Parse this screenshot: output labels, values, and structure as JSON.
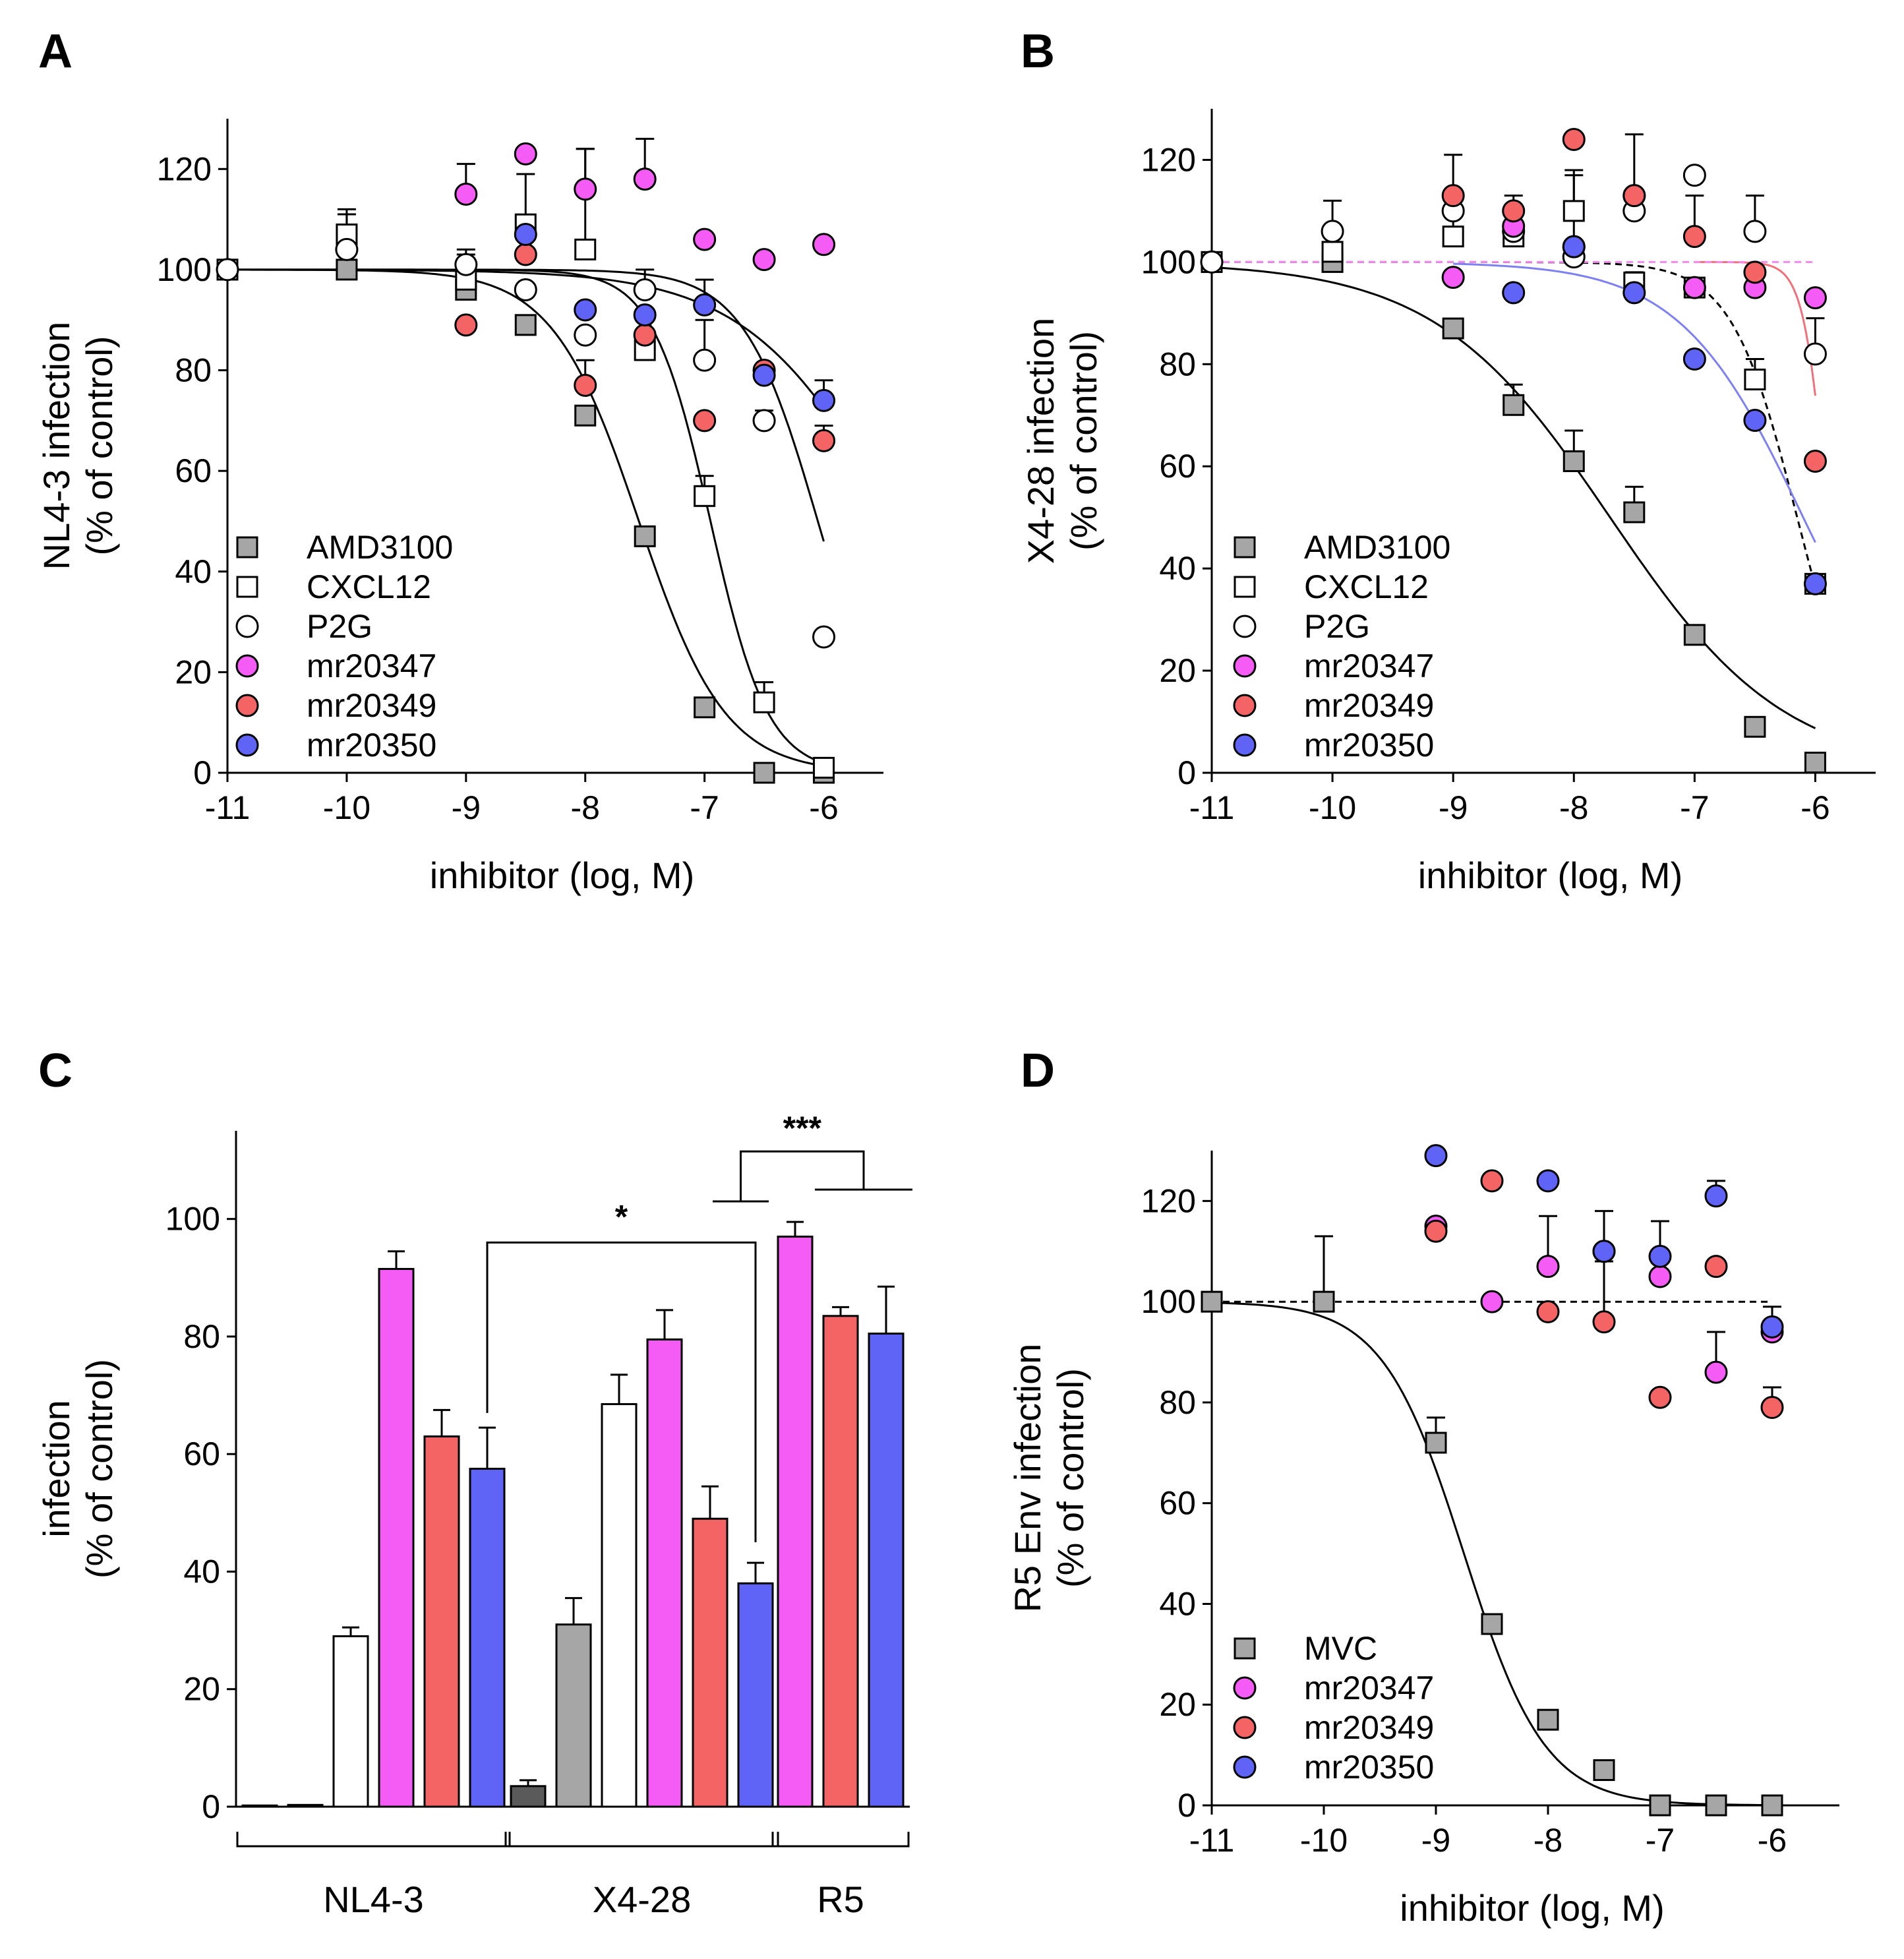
{
  "colors": {
    "AMD3100": "#a6a6a6",
    "MVC": "#a6a6a6",
    "CXCL12": "#ffffff",
    "P2G": "#ffffff",
    "mr20347": "#f55cf5",
    "mr20349": "#f46464",
    "mr20350": "#5f63f6",
    "AMD3100_dark": "#5a5a5a",
    "curve_blue": "#7d80f2",
    "curve_red": "#f2707a",
    "curve_pink": "#f489f0"
  },
  "chart_data": [
    {
      "id": "A",
      "type": "scatter",
      "panel_label": "A",
      "xlabel": "inhibitor (log, M)",
      "ylabel": [
        "NL4-3 infection",
        "(% of control)"
      ],
      "xlim": [
        -11,
        -5.5
      ],
      "ylim": [
        0,
        130
      ],
      "xticks": [
        -11,
        -10,
        -9,
        -8,
        -7,
        -6
      ],
      "xtick_labels": [
        "-11",
        "-10",
        "-9",
        "-8",
        "-7",
        "-6"
      ],
      "yticks": [
        0,
        20,
        40,
        60,
        80,
        100,
        120
      ],
      "ytick_labels": [
        "0",
        "20",
        "40",
        "60",
        "80",
        "100",
        "120"
      ],
      "legend": [
        "AMD3100",
        "CXCL12",
        "P2G",
        "mr20347",
        "mr20349",
        "mr20350"
      ],
      "series": [
        {
          "name": "AMD3100",
          "marker": "square",
          "x": [
            -11,
            -10,
            -9,
            -8.5,
            -8,
            -7.5,
            -7,
            -6.5,
            -6
          ],
          "y": [
            100,
            100,
            96,
            89,
            71,
            47,
            13,
            0,
            0
          ],
          "err": [
            0,
            0,
            4,
            0,
            0,
            0,
            0,
            0,
            0
          ]
        },
        {
          "name": "CXCL12",
          "marker": "square",
          "x": [
            -11,
            -10,
            -9,
            -8.5,
            -8,
            -7.5,
            -7,
            -6.5,
            -6
          ],
          "y": [
            100,
            107,
            98,
            109,
            104,
            84,
            55,
            14,
            1
          ],
          "err": [
            0,
            5,
            5,
            10,
            20,
            4,
            4,
            4,
            0
          ]
        },
        {
          "name": "P2G",
          "marker": "circle",
          "x": [
            -11,
            -10,
            -9,
            -8.5,
            -8,
            -7.5,
            -7,
            -6.5,
            -6
          ],
          "y": [
            100,
            104,
            101,
            96,
            87,
            96,
            82,
            70,
            27
          ],
          "err": [
            0,
            7,
            3,
            0,
            0,
            4,
            8,
            2,
            0
          ]
        },
        {
          "name": "mr20347",
          "marker": "circle",
          "x": [
            -9,
            -8.5,
            -8,
            -7.5,
            -7,
            -6.5,
            -6
          ],
          "y": [
            115,
            123,
            116,
            118,
            106,
            102,
            105
          ],
          "err": [
            6,
            0,
            8,
            8,
            0,
            0,
            0
          ]
        },
        {
          "name": "mr20349",
          "marker": "circle",
          "x": [
            -9,
            -8.5,
            -8,
            -7.5,
            -7,
            -6.5,
            -6
          ],
          "y": [
            89,
            103,
            77,
            87,
            70,
            80,
            66
          ],
          "err": [
            0,
            0,
            5,
            0,
            0,
            0,
            3
          ]
        },
        {
          "name": "mr20350",
          "marker": "circle",
          "x": [
            -8.5,
            -8,
            -7.5,
            -7,
            -6.5,
            -6
          ],
          "y": [
            107,
            92,
            91,
            93,
            79,
            74
          ],
          "err": [
            0,
            0,
            0,
            5,
            0,
            4
          ]
        }
      ],
      "curves": [
        {
          "name": "AMD3100",
          "top": 100,
          "bottom": 0,
          "logEC50": -7.55,
          "hill": 1.2,
          "style": "solid",
          "color": "#000000",
          "x0": -11,
          "x1": -6
        },
        {
          "name": "CXCL12",
          "top": 100,
          "bottom": 0,
          "logEC50": -6.95,
          "hill": 1.8,
          "style": "solid",
          "color": "#000000",
          "x0": -11,
          "x1": -6
        },
        {
          "name": "P2G",
          "top": 100,
          "bottom": 0,
          "logEC50": -6.05,
          "hill": 1.4,
          "style": "solid",
          "color": "#000000",
          "x0": -11,
          "x1": -6
        },
        {
          "name": "mr20350",
          "top": 100,
          "bottom": 0,
          "logEC50": -5.4,
          "hill": 0.7,
          "style": "solid",
          "color": "#000000",
          "x0": -11,
          "x1": -6
        }
      ]
    },
    {
      "id": "B",
      "type": "scatter",
      "panel_label": "B",
      "xlabel": "inhibitor (log, M)",
      "ylabel": [
        "X4-28 infection",
        "(% of control)"
      ],
      "xlim": [
        -11,
        -5.5
      ],
      "ylim": [
        0,
        130
      ],
      "xticks": [
        -11,
        -10,
        -9,
        -8,
        -7,
        -6
      ],
      "xtick_labels": [
        "-11",
        "-10",
        "-9",
        "-8",
        "-7",
        "-6"
      ],
      "yticks": [
        0,
        20,
        40,
        60,
        80,
        100,
        120
      ],
      "ytick_labels": [
        "0",
        "20",
        "40",
        "60",
        "80",
        "100",
        "120"
      ],
      "legend": [
        "AMD3100",
        "CXCL12",
        "P2G",
        "mr20347",
        "mr20349",
        "mr20350"
      ],
      "series": [
        {
          "name": "AMD3100",
          "marker": "square",
          "x": [
            -11,
            -10,
            -9,
            -8.5,
            -8,
            -7.5,
            -7,
            -6.5,
            -6
          ],
          "y": [
            100,
            100,
            87,
            72,
            61,
            51,
            27,
            9,
            2
          ],
          "err": [
            0,
            0,
            0,
            4,
            6,
            5,
            0,
            0,
            0
          ]
        },
        {
          "name": "CXCL12",
          "marker": "square",
          "x": [
            -11,
            -10,
            -9,
            -8.5,
            -8,
            -7.5,
            -7,
            -6.5,
            -6
          ],
          "y": [
            100,
            102,
            105,
            105,
            110,
            96,
            95,
            77,
            37
          ],
          "err": [
            0,
            4,
            6,
            8,
            8,
            2,
            0,
            4,
            0
          ]
        },
        {
          "name": "P2G",
          "marker": "circle",
          "x": [
            -11,
            -10,
            -9,
            -8.5,
            -8,
            -7.5,
            -7,
            -6.5,
            -6
          ],
          "y": [
            100,
            106,
            110,
            106,
            101,
            110,
            117,
            106,
            82
          ],
          "err": [
            0,
            6,
            0,
            0,
            0,
            0,
            0,
            7,
            7
          ]
        },
        {
          "name": "mr20347",
          "marker": "circle",
          "x": [
            -9,
            -8.5,
            -8,
            -7.5,
            -7,
            -6.5,
            -6
          ],
          "y": [
            97,
            107,
            103,
            113,
            95,
            95,
            93
          ],
          "err": [
            0,
            0,
            0,
            12,
            0,
            0,
            0
          ]
        },
        {
          "name": "mr20349",
          "marker": "circle",
          "x": [
            -9,
            -8.5,
            -8,
            -7.5,
            -7,
            -6.5,
            -6
          ],
          "y": [
            113,
            110,
            124,
            113,
            105,
            98,
            61
          ],
          "err": [
            8,
            0,
            0,
            0,
            8,
            0,
            0
          ]
        },
        {
          "name": "mr20350",
          "marker": "circle",
          "x": [
            -8.5,
            -8,
            -7.5,
            -7,
            -6.5,
            -6
          ],
          "y": [
            94,
            103,
            94,
            81,
            69,
            37
          ],
          "err": [
            0,
            14,
            0,
            0,
            0,
            0
          ]
        }
      ],
      "curves": [
        {
          "name": "AMD3100",
          "top": 100,
          "bottom": 0,
          "logEC50": -7.7,
          "hill": 0.6,
          "style": "solid",
          "color": "#000000",
          "x0": -11,
          "x1": -6
        },
        {
          "name": "CXCL12",
          "top": 100,
          "bottom": 0,
          "logEC50": -6.15,
          "hill": 1.6,
          "style": "dashed",
          "color": "#000000",
          "x0": -11,
          "x1": -6
        },
        {
          "name": "mr20350",
          "top": 100,
          "bottom": 0,
          "logEC50": -6.1,
          "hill": 0.85,
          "style": "solid",
          "color": "#7d80f2",
          "x0": -9,
          "x1": -6
        },
        {
          "name": "mr20349",
          "top": 100,
          "bottom": 0,
          "logEC50": -5.9,
          "hill": 4.5,
          "style": "solid",
          "color": "#f2707a",
          "x0": -7,
          "x1": -6
        },
        {
          "name": "mr20347",
          "top": 100,
          "bottom": 0,
          "logEC50": -2,
          "hill": 1,
          "style": "dashed",
          "color": "#f489f0",
          "x0": -11,
          "x1": -6
        }
      ]
    },
    {
      "id": "C",
      "type": "bar",
      "panel_label": "C",
      "ylabel": [
        "infection",
        "(% of control)"
      ],
      "ylim": [
        0,
        115
      ],
      "yticks": [
        0,
        20,
        40,
        60,
        80,
        100
      ],
      "ytick_labels": [
        "0",
        "20",
        "40",
        "60",
        "80",
        "100"
      ],
      "groups": [
        {
          "label": "NL4-3",
          "bars": [
            {
              "name": "AMD3100",
              "value": 0.2,
              "err": 0,
              "color_key": "AMD3100_dark"
            },
            {
              "name": "AMD3100",
              "value": 0.3,
              "err": 0,
              "color_key": "AMD3100"
            },
            {
              "name": "P2G",
              "value": 29,
              "err": 1.5,
              "color_key": "P2G"
            },
            {
              "name": "mr20347",
              "value": 91.5,
              "err": 3,
              "color_key": "mr20347"
            },
            {
              "name": "mr20349",
              "value": 63,
              "err": 4.5,
              "color_key": "mr20349"
            },
            {
              "name": "mr20350",
              "value": 57.5,
              "err": 7,
              "color_key": "mr20350"
            }
          ]
        },
        {
          "label": "X4-28",
          "bars": [
            {
              "name": "AMD3100",
              "value": 3.5,
              "err": 1,
              "color_key": "AMD3100_dark"
            },
            {
              "name": "AMD3100",
              "value": 31,
              "err": 4.5,
              "color_key": "AMD3100"
            },
            {
              "name": "P2G",
              "value": 68.5,
              "err": 5,
              "color_key": "P2G"
            },
            {
              "name": "mr20347",
              "value": 79.5,
              "err": 5,
              "color_key": "mr20347"
            },
            {
              "name": "mr20349",
              "value": 49,
              "err": 5.5,
              "color_key": "mr20349"
            },
            {
              "name": "mr20350",
              "value": 38,
              "err": 3.5,
              "color_key": "mr20350"
            }
          ]
        },
        {
          "label": "R5",
          "bars": [
            {
              "name": "mr20347",
              "value": 97,
              "err": 2.5,
              "color_key": "mr20347"
            },
            {
              "name": "mr20349",
              "value": 83.5,
              "err": 1.5,
              "color_key": "mr20349"
            },
            {
              "name": "mr20350",
              "value": 80.5,
              "err": 8,
              "color_key": "mr20350"
            }
          ]
        }
      ],
      "annotations": [
        {
          "text": "*",
          "between": "NL4-3 mr20350 vs X4-28 mr20350"
        },
        {
          "text": "***",
          "between": "X4-28 mr20350 vs R5"
        }
      ]
    },
    {
      "id": "D",
      "type": "scatter",
      "panel_label": "D",
      "xlabel": "inhibitor (log, M)",
      "ylabel": [
        "R5 Env infection",
        "(% of control)"
      ],
      "xlim": [
        -11,
        -5.4
      ],
      "ylim": [
        0,
        130
      ],
      "xticks": [
        -11,
        -10,
        -9,
        -8,
        -7,
        -6
      ],
      "xtick_labels": [
        "-11",
        "-10",
        "-9",
        "-8",
        "-7",
        "-6"
      ],
      "yticks": [
        0,
        20,
        40,
        60,
        80,
        100,
        120
      ],
      "ytick_labels": [
        "0",
        "20",
        "40",
        "60",
        "80",
        "100",
        "120"
      ],
      "legend": [
        "MVC",
        "mr20347",
        "mr20349",
        "mr20350"
      ],
      "series": [
        {
          "name": "MVC",
          "marker": "square",
          "x": [
            -11,
            -10,
            -9,
            -8.5,
            -8,
            -7.5,
            -7,
            -6.5,
            -6
          ],
          "y": [
            100,
            100,
            72,
            36,
            17,
            7,
            0,
            0,
            0
          ],
          "err": [
            0,
            13,
            5,
            0,
            0,
            0,
            0,
            0,
            0
          ]
        },
        {
          "name": "mr20347",
          "marker": "circle",
          "x": [
            -9,
            -8.5,
            -8,
            -7.5,
            -7,
            -6.5,
            -6
          ],
          "y": [
            115,
            100,
            107,
            110,
            105,
            86,
            94
          ],
          "err": [
            0,
            0,
            10,
            8,
            11,
            8,
            0
          ]
        },
        {
          "name": "mr20349",
          "marker": "circle",
          "x": [
            -9,
            -8.5,
            -8,
            -7.5,
            -7,
            -6.5,
            -6
          ],
          "y": [
            114,
            124,
            98,
            96,
            81,
            107,
            79
          ],
          "err": [
            0,
            0,
            0,
            12,
            0,
            0,
            4
          ]
        },
        {
          "name": "mr20350",
          "marker": "circle",
          "x": [
            -9,
            -8,
            -7.5,
            -7,
            -6.5,
            -6
          ],
          "y": [
            129,
            124,
            110,
            109,
            121,
            95
          ],
          "err": [
            0,
            0,
            0,
            7,
            3,
            4
          ]
        }
      ],
      "curves": [
        {
          "name": "MVC",
          "top": 100,
          "bottom": 0,
          "logEC50": -8.75,
          "hill": 1.2,
          "style": "solid",
          "color": "#000000",
          "x0": -11,
          "x1": -6
        },
        {
          "name": "mr20347",
          "top": 100,
          "bottom": 0,
          "logEC50": -2,
          "hill": 1,
          "style": "dashed",
          "color": "#000000",
          "x0": -11,
          "x1": -6
        }
      ]
    }
  ]
}
